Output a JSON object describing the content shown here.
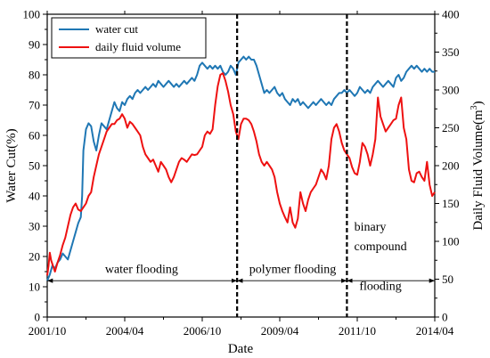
{
  "chart_data": {
    "type": "line",
    "xlabel": "Date",
    "ylabel_left": "Water Cut(%)",
    "ylabel_right": "Daily Fluid Volume(m",
    "ylabel_right_sup": "3",
    "ylabel_right_close": ")",
    "x_range_months": [
      0,
      150
    ],
    "x_ticks": [
      {
        "m": 0,
        "label": "2001/10"
      },
      {
        "m": 30,
        "label": "2004/04"
      },
      {
        "m": 60,
        "label": "2006/10"
      },
      {
        "m": 90,
        "label": "2009/04"
      },
      {
        "m": 120,
        "label": "2011/10"
      },
      {
        "m": 150,
        "label": "2014/04"
      }
    ],
    "ylim_left": [
      0,
      100
    ],
    "yticks_left": [
      0,
      10,
      20,
      30,
      40,
      50,
      60,
      70,
      80,
      90,
      100
    ],
    "ylim_right": [
      0,
      400
    ],
    "yticks_right": [
      0,
      50,
      100,
      150,
      200,
      250,
      300,
      350,
      400
    ],
    "legend_position": "top-left",
    "series": [
      {
        "name": "water cut",
        "axis": "left",
        "color": "#1f77b4",
        "points": [
          [
            0,
            12
          ],
          [
            1,
            14
          ],
          [
            2,
            17
          ],
          [
            3,
            16
          ],
          [
            4,
            18
          ],
          [
            5,
            19
          ],
          [
            6,
            21
          ],
          [
            7,
            20
          ],
          [
            8,
            19
          ],
          [
            9,
            22
          ],
          [
            10,
            25
          ],
          [
            11,
            28
          ],
          [
            12,
            31
          ],
          [
            13,
            33
          ],
          [
            13.5,
            40
          ],
          [
            14,
            55
          ],
          [
            15,
            62
          ],
          [
            16,
            64
          ],
          [
            17,
            63
          ],
          [
            18,
            58
          ],
          [
            19,
            55
          ],
          [
            20,
            60
          ],
          [
            21,
            64
          ],
          [
            22,
            63
          ],
          [
            23,
            62
          ],
          [
            24,
            65
          ],
          [
            25,
            68
          ],
          [
            26,
            71
          ],
          [
            27,
            69
          ],
          [
            28,
            68
          ],
          [
            29,
            71
          ],
          [
            30,
            70
          ],
          [
            31,
            72
          ],
          [
            32,
            73
          ],
          [
            33,
            72
          ],
          [
            34,
            74
          ],
          [
            35,
            75
          ],
          [
            36,
            74
          ],
          [
            37,
            75
          ],
          [
            38,
            76
          ],
          [
            39,
            75
          ],
          [
            40,
            76
          ],
          [
            41,
            77
          ],
          [
            42,
            76
          ],
          [
            43,
            78
          ],
          [
            44,
            77
          ],
          [
            45,
            76
          ],
          [
            46,
            77
          ],
          [
            47,
            78
          ],
          [
            48,
            77
          ],
          [
            49,
            76
          ],
          [
            50,
            77
          ],
          [
            51,
            76
          ],
          [
            52,
            77
          ],
          [
            53,
            78
          ],
          [
            54,
            77
          ],
          [
            55,
            78
          ],
          [
            56,
            79
          ],
          [
            57,
            78
          ],
          [
            58,
            80
          ],
          [
            59,
            83
          ],
          [
            60,
            84
          ],
          [
            61,
            83
          ],
          [
            62,
            82
          ],
          [
            63,
            83
          ],
          [
            64,
            82
          ],
          [
            65,
            83
          ],
          [
            66,
            82
          ],
          [
            67,
            83
          ],
          [
            68,
            81
          ],
          [
            69,
            80
          ],
          [
            70,
            81
          ],
          [
            71,
            83
          ],
          [
            72,
            82
          ],
          [
            73,
            80
          ],
          [
            74,
            84
          ],
          [
            75,
            85
          ],
          [
            76,
            86
          ],
          [
            77,
            85
          ],
          [
            78,
            86
          ],
          [
            79,
            85
          ],
          [
            80,
            85
          ],
          [
            81,
            83
          ],
          [
            82,
            80
          ],
          [
            83,
            77
          ],
          [
            84,
            74
          ],
          [
            85,
            75
          ],
          [
            86,
            74
          ],
          [
            87,
            75
          ],
          [
            88,
            76
          ],
          [
            89,
            74
          ],
          [
            90,
            73
          ],
          [
            91,
            74
          ],
          [
            92,
            72
          ],
          [
            93,
            71
          ],
          [
            94,
            70
          ],
          [
            95,
            72
          ],
          [
            96,
            71
          ],
          [
            97,
            72
          ],
          [
            98,
            70
          ],
          [
            99,
            71
          ],
          [
            100,
            70
          ],
          [
            101,
            69
          ],
          [
            102,
            70
          ],
          [
            103,
            71
          ],
          [
            104,
            70
          ],
          [
            105,
            71
          ],
          [
            106,
            72
          ],
          [
            107,
            71
          ],
          [
            108,
            70
          ],
          [
            109,
            71
          ],
          [
            110,
            70
          ],
          [
            111,
            72
          ],
          [
            112,
            73
          ],
          [
            113,
            74
          ],
          [
            114,
            74
          ],
          [
            115,
            75
          ],
          [
            116,
            74
          ],
          [
            117,
            75
          ],
          [
            118,
            74
          ],
          [
            119,
            73
          ],
          [
            120,
            74
          ],
          [
            121,
            76
          ],
          [
            122,
            75
          ],
          [
            123,
            74
          ],
          [
            124,
            75
          ],
          [
            125,
            74
          ],
          [
            126,
            76
          ],
          [
            127,
            77
          ],
          [
            128,
            78
          ],
          [
            129,
            77
          ],
          [
            130,
            76
          ],
          [
            131,
            77
          ],
          [
            132,
            78
          ],
          [
            133,
            77
          ],
          [
            134,
            76
          ],
          [
            135,
            79
          ],
          [
            136,
            80
          ],
          [
            137,
            78
          ],
          [
            138,
            79
          ],
          [
            139,
            81
          ],
          [
            140,
            82
          ],
          [
            141,
            83
          ],
          [
            142,
            82
          ],
          [
            143,
            83
          ],
          [
            144,
            82
          ],
          [
            145,
            81
          ],
          [
            146,
            82
          ],
          [
            147,
            81
          ],
          [
            148,
            82
          ],
          [
            149,
            81
          ],
          [
            150,
            81
          ]
        ]
      },
      {
        "name": "daily fluid volume",
        "axis": "right",
        "color": "#ee1111",
        "points": [
          [
            0,
            55
          ],
          [
            0.5,
            68
          ],
          [
            1,
            85
          ],
          [
            1.5,
            75
          ],
          [
            2,
            70
          ],
          [
            3,
            60
          ],
          [
            4,
            72
          ],
          [
            5,
            82
          ],
          [
            6,
            95
          ],
          [
            7,
            105
          ],
          [
            8,
            120
          ],
          [
            9,
            135
          ],
          [
            10,
            145
          ],
          [
            11,
            150
          ],
          [
            12,
            142
          ],
          [
            13,
            140
          ],
          [
            14,
            145
          ],
          [
            15,
            150
          ],
          [
            16,
            160
          ],
          [
            17,
            165
          ],
          [
            18,
            185
          ],
          [
            19,
            200
          ],
          [
            20,
            215
          ],
          [
            21,
            225
          ],
          [
            22,
            235
          ],
          [
            23,
            245
          ],
          [
            24,
            250
          ],
          [
            25,
            255
          ],
          [
            26,
            255
          ],
          [
            27,
            260
          ],
          [
            28,
            262
          ],
          [
            29,
            268
          ],
          [
            30,
            262
          ],
          [
            31,
            250
          ],
          [
            32,
            258
          ],
          [
            33,
            255
          ],
          [
            34,
            250
          ],
          [
            35,
            245
          ],
          [
            36,
            240
          ],
          [
            37,
            225
          ],
          [
            38,
            215
          ],
          [
            39,
            210
          ],
          [
            40,
            205
          ],
          [
            41,
            208
          ],
          [
            42,
            200
          ],
          [
            43,
            192
          ],
          [
            44,
            205
          ],
          [
            45,
            200
          ],
          [
            46,
            195
          ],
          [
            47,
            185
          ],
          [
            48,
            178
          ],
          [
            49,
            185
          ],
          [
            50,
            195
          ],
          [
            51,
            205
          ],
          [
            52,
            210
          ],
          [
            53,
            208
          ],
          [
            54,
            205
          ],
          [
            55,
            210
          ],
          [
            56,
            215
          ],
          [
            57,
            214
          ],
          [
            58,
            215
          ],
          [
            59,
            220
          ],
          [
            60,
            225
          ],
          [
            61,
            240
          ],
          [
            62,
            245
          ],
          [
            63,
            242
          ],
          [
            64,
            248
          ],
          [
            65,
            280
          ],
          [
            66,
            305
          ],
          [
            67,
            320
          ],
          [
            68,
            322
          ],
          [
            69,
            312
          ],
          [
            70,
            298
          ],
          [
            71,
            280
          ],
          [
            72,
            268
          ],
          [
            73,
            245
          ],
          [
            74,
            235
          ],
          [
            75,
            255
          ],
          [
            76,
            262
          ],
          [
            77,
            262
          ],
          [
            78,
            260
          ],
          [
            79,
            255
          ],
          [
            80,
            245
          ],
          [
            81,
            232
          ],
          [
            82,
            215
          ],
          [
            83,
            205
          ],
          [
            84,
            200
          ],
          [
            85,
            205
          ],
          [
            86,
            200
          ],
          [
            87,
            195
          ],
          [
            88,
            185
          ],
          [
            89,
            165
          ],
          [
            90,
            150
          ],
          [
            91,
            140
          ],
          [
            92,
            132
          ],
          [
            93,
            125
          ],
          [
            94,
            145
          ],
          [
            95,
            125
          ],
          [
            96,
            118
          ],
          [
            97,
            130
          ],
          [
            98,
            165
          ],
          [
            99,
            150
          ],
          [
            100,
            140
          ],
          [
            101,
            155
          ],
          [
            102,
            165
          ],
          [
            103,
            170
          ],
          [
            104,
            175
          ],
          [
            105,
            185
          ],
          [
            106,
            195
          ],
          [
            107,
            190
          ],
          [
            108,
            182
          ],
          [
            109,
            200
          ],
          [
            110,
            235
          ],
          [
            111,
            250
          ],
          [
            112,
            255
          ],
          [
            113,
            245
          ],
          [
            114,
            230
          ],
          [
            115,
            220
          ],
          [
            116,
            215
          ],
          [
            117,
            210
          ],
          [
            118,
            198
          ],
          [
            119,
            190
          ],
          [
            120,
            188
          ],
          [
            121,
            205
          ],
          [
            122,
            230
          ],
          [
            123,
            225
          ],
          [
            124,
            215
          ],
          [
            125,
            200
          ],
          [
            126,
            215
          ],
          [
            127,
            235
          ],
          [
            128,
            290
          ],
          [
            129,
            265
          ],
          [
            130,
            255
          ],
          [
            131,
            245
          ],
          [
            132,
            250
          ],
          [
            133,
            255
          ],
          [
            134,
            260
          ],
          [
            135,
            262
          ],
          [
            136,
            280
          ],
          [
            137,
            290
          ],
          [
            138,
            250
          ],
          [
            139,
            235
          ],
          [
            140,
            195
          ],
          [
            141,
            180
          ],
          [
            142,
            178
          ],
          [
            143,
            190
          ],
          [
            144,
            192
          ],
          [
            145,
            185
          ],
          [
            146,
            180
          ],
          [
            147,
            205
          ],
          [
            148,
            175
          ],
          [
            149,
            160
          ],
          [
            150,
            165
          ]
        ]
      }
    ],
    "vlines_months": [
      73.5,
      116
    ],
    "annotations": [
      {
        "text": "water flooding",
        "m": 36.5,
        "y": 14.5
      },
      {
        "text": "polymer flooding",
        "m": 95,
        "y": 14.5
      },
      {
        "text": "binary",
        "m": 125,
        "y": 28.5
      },
      {
        "text": "compound",
        "m": 129,
        "y": 22
      },
      {
        "text": "flooding",
        "m": 129,
        "y": 9
      }
    ],
    "arrows": [
      {
        "from": 0,
        "to": 73.5,
        "y": 12
      },
      {
        "from": 73.5,
        "to": 116,
        "y": 12
      },
      {
        "from": 116,
        "to": 150,
        "y": 12
      }
    ]
  }
}
